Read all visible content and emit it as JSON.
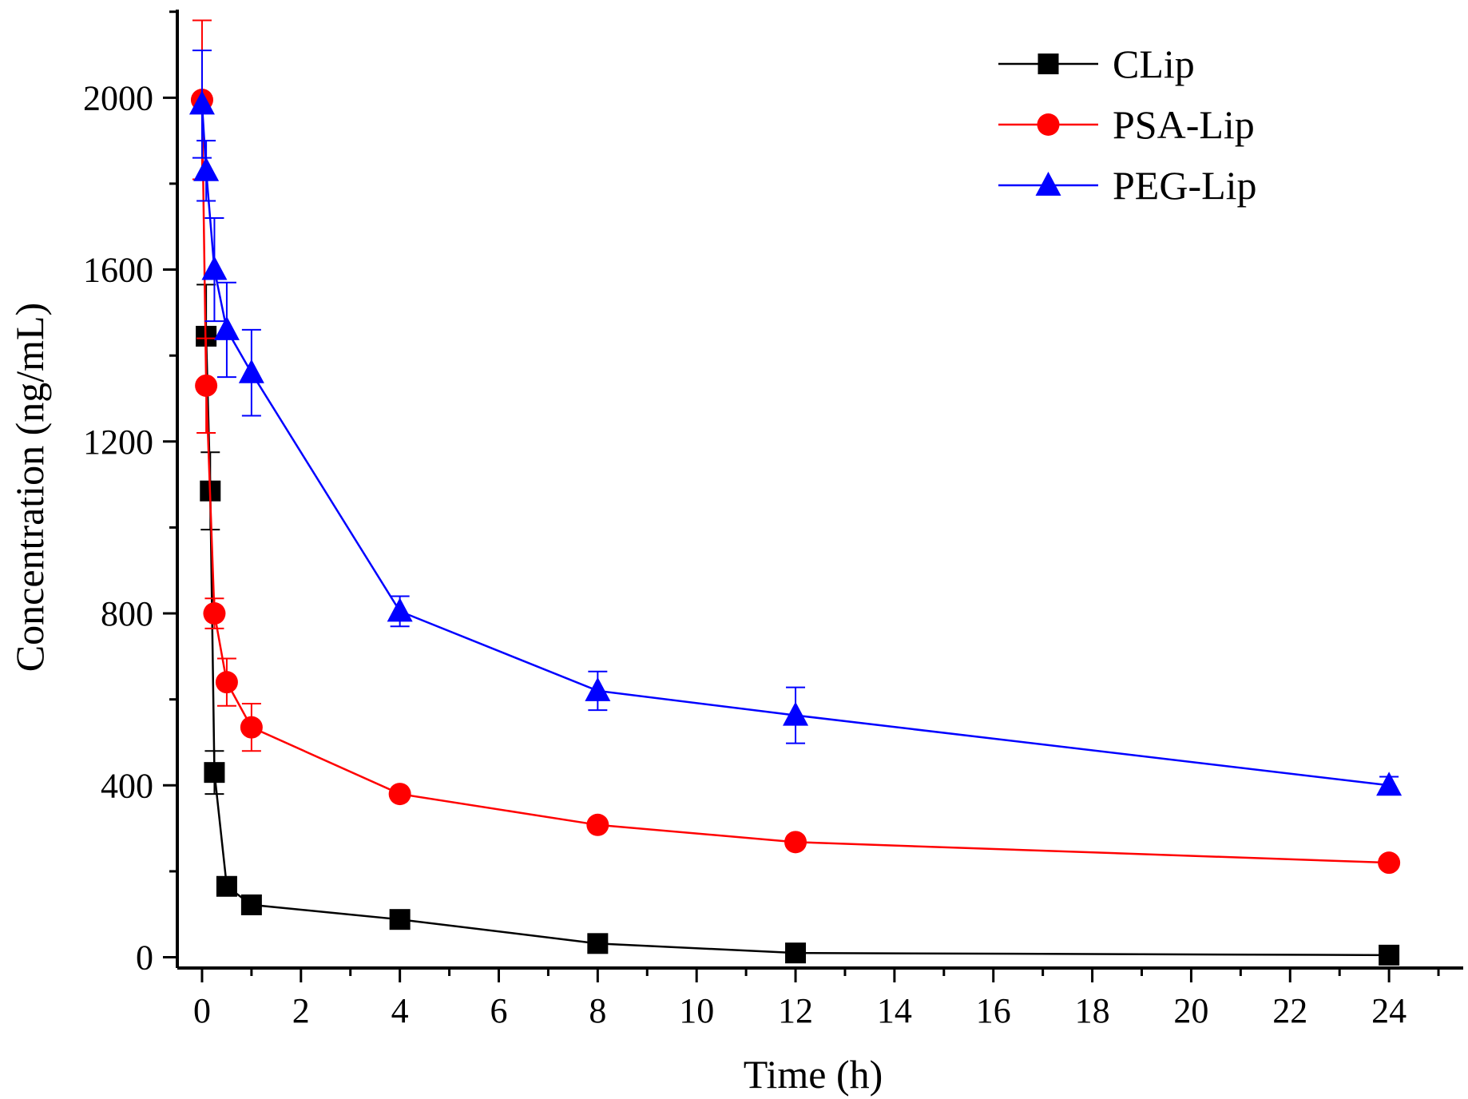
{
  "chart_data": {
    "type": "line",
    "title": "",
    "xlabel": "Time (h)",
    "ylabel": "Concentration (ng/mL)",
    "xlim": [
      -0.5,
      25.5
    ],
    "ylim": [
      -25,
      2205
    ],
    "xticks": [
      0,
      2,
      4,
      6,
      8,
      10,
      12,
      14,
      16,
      18,
      20,
      22,
      24
    ],
    "yticks": [
      0,
      400,
      800,
      1200,
      1600,
      2000
    ],
    "xtick_labels": [
      "0",
      "2",
      "4",
      "6",
      "8",
      "10",
      "12",
      "14",
      "16",
      "18",
      "20",
      "22",
      "24"
    ],
    "ytick_labels": [
      "0",
      "400",
      "800",
      "1200",
      "1600",
      "2000"
    ],
    "grid": false,
    "legend_position": "top-right",
    "series": [
      {
        "name": "CLip",
        "color": "#000000",
        "marker": "square",
        "x": [
          0.0833,
          0.1667,
          0.25,
          0.5,
          1,
          4,
          8,
          12,
          24
        ],
        "y": [
          1445,
          1085,
          430,
          165,
          122,
          88,
          32,
          10,
          5
        ],
        "err": [
          120,
          90,
          50,
          0,
          0,
          0,
          0,
          0,
          0
        ]
      },
      {
        "name": "PSA-Lip",
        "color": "#ff0000",
        "marker": "circle",
        "x": [
          0,
          0.0833,
          0.25,
          0.5,
          1,
          4,
          8,
          12,
          24
        ],
        "y": [
          1995,
          1330,
          800,
          640,
          535,
          380,
          308,
          268,
          220
        ],
        "err": [
          185,
          110,
          35,
          55,
          55,
          0,
          0,
          0,
          0
        ]
      },
      {
        "name": "PEG-Lip",
        "color": "#0000ff",
        "marker": "triangle",
        "x": [
          0,
          0.0833,
          0.25,
          0.5,
          1,
          4,
          8,
          12,
          24
        ],
        "y": [
          1985,
          1830,
          1600,
          1460,
          1360,
          805,
          620,
          563,
          400
        ],
        "err": [
          125,
          70,
          120,
          110,
          100,
          35,
          45,
          65,
          20
        ]
      }
    ]
  }
}
